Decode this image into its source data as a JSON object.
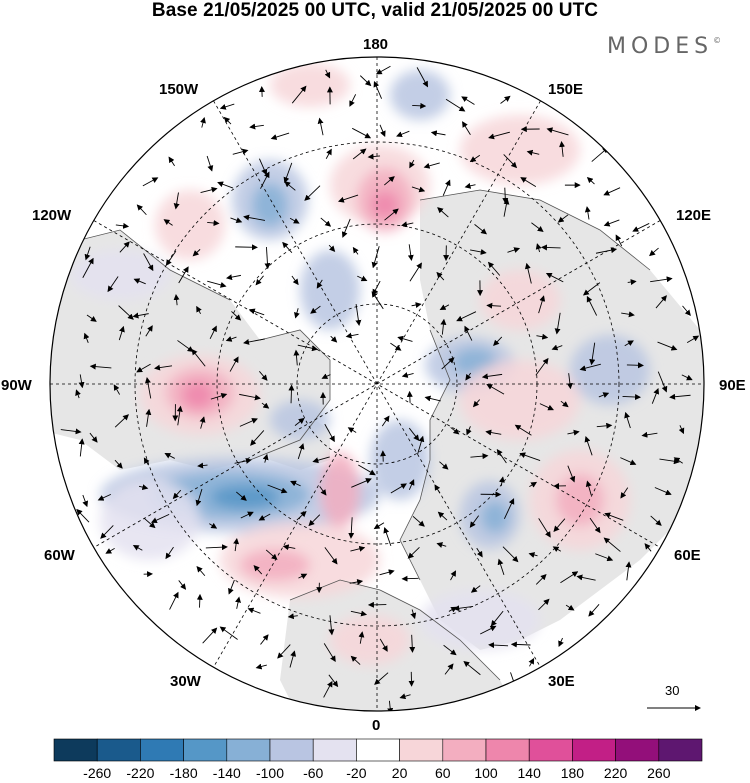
{
  "title": "Base 21/05/2025 00 UTC, valid 21/05/2025 00 UTC",
  "brand": {
    "text": "MODES",
    "mark": "©"
  },
  "longitude_labels": {
    "lon_180": "180",
    "lon_150E": "150E",
    "lon_120E": "120E",
    "lon_90E": "90E",
    "lon_60E": "60E",
    "lon_30E": "30E",
    "lon_0": "0",
    "lon_30W": "30W",
    "lon_60W": "60W",
    "lon_90W": "90W",
    "lon_120W": "120W",
    "lon_150W": "150W"
  },
  "vector_reference": {
    "value": "30"
  },
  "colorbar": {
    "ticks": [
      "-260",
      "-220",
      "-180",
      "-140",
      "-100",
      "-60",
      "-20",
      "20",
      "60",
      "100",
      "140",
      "180",
      "220",
      "260"
    ],
    "colors": [
      "#0d3a5c",
      "#1a5a8c",
      "#2f7ab4",
      "#5597c7",
      "#87b0d6",
      "#b9c5e2",
      "#e4e2f0",
      "#ffffff",
      "#f7d6d9",
      "#f3aec0",
      "#ee86ac",
      "#e0509a",
      "#c21f86",
      "#930f7a",
      "#5e1770"
    ]
  },
  "map_colors": {
    "land": "#e6e6e6",
    "ocean": "#ffffff",
    "coast": "#555555",
    "grid": "#000000"
  }
}
